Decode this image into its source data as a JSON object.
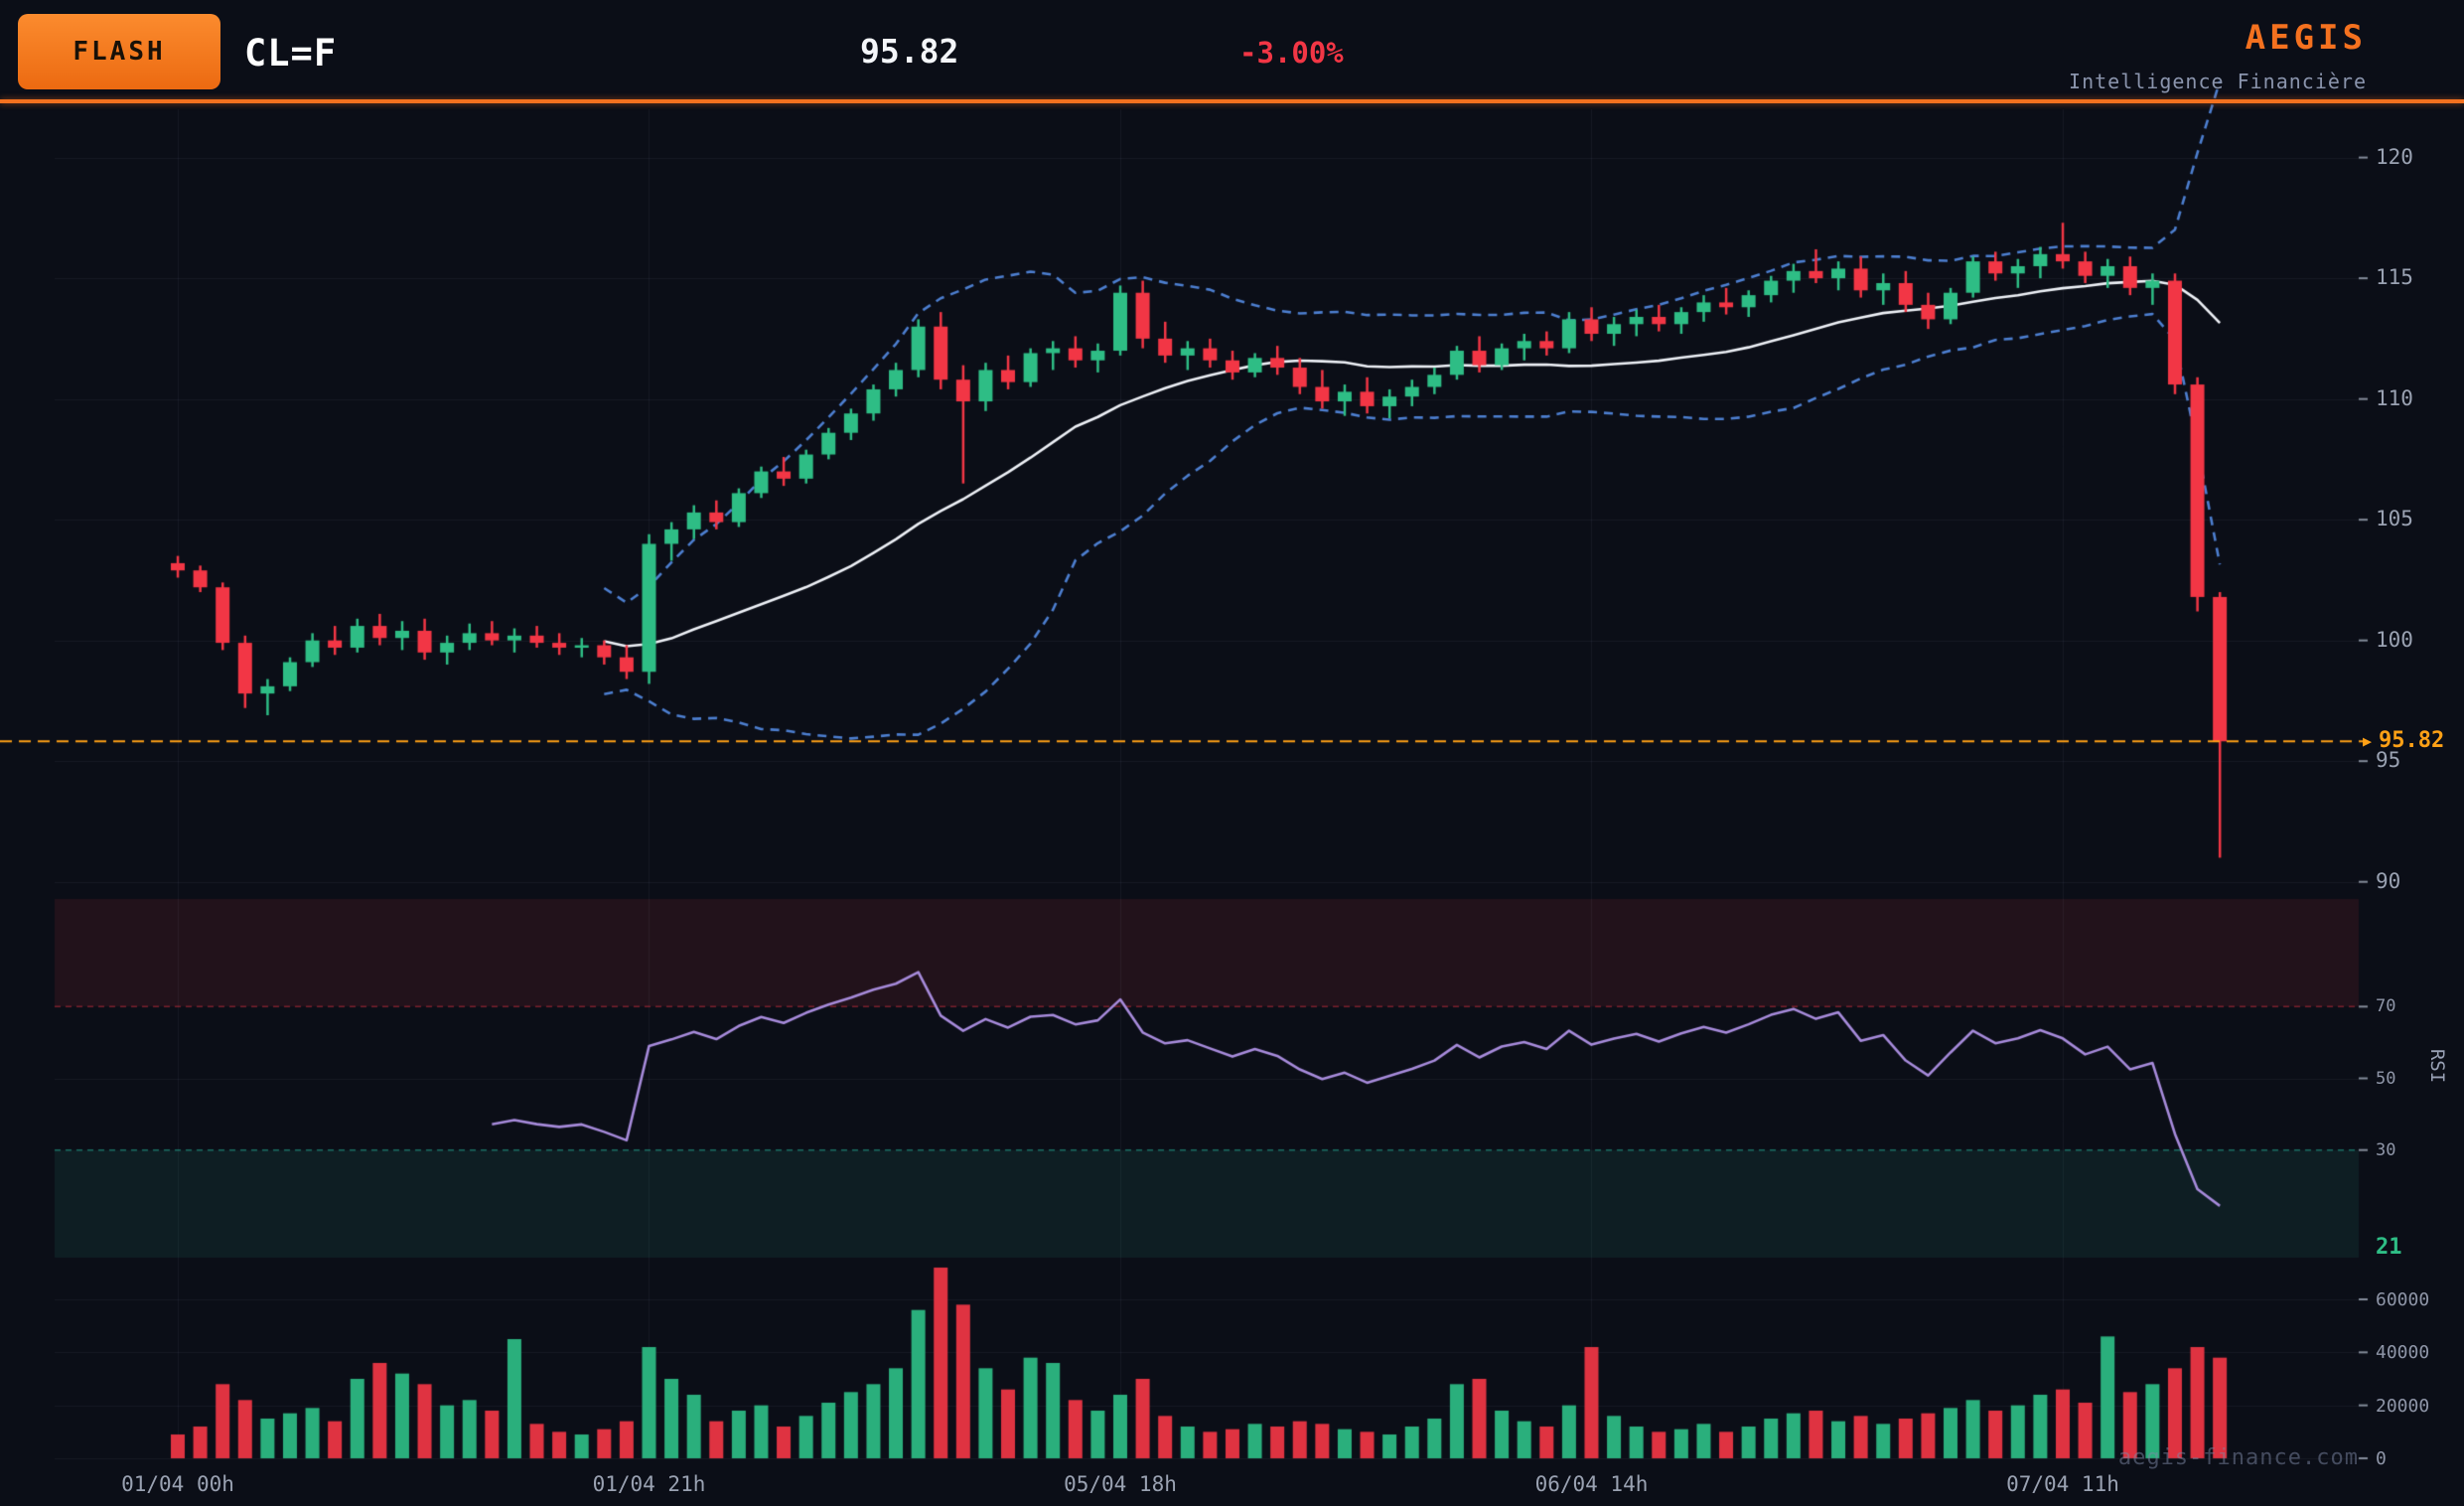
{
  "header": {
    "badge": "FLASH",
    "symbol": "CL=F",
    "price": "95.82",
    "change": "-3.00%",
    "brand": "AEGIS",
    "brand_subtitle": "Intelligence Financière"
  },
  "watermark": "aegis-finance.com",
  "axis": {
    "price_tag_arrow": "▶",
    "current_price_label": "95.82",
    "rsi_current_label": "21",
    "rsi_title": "RSI"
  },
  "colors": {
    "background": "#0b0e17",
    "bull": "#2ebd85",
    "bear": "#f23645",
    "sma": "#eef1f7",
    "bollinger": "#4d7fd0",
    "rsi": "#a78bdb",
    "accent": "#f4711f",
    "price_line": "#ffa116",
    "axis_text": "#9aa2b2",
    "grid": "rgba(150,160,190,0.08)",
    "tick_mark": "rgba(154,162,178,0.85)",
    "overbought_fill": "rgba(242,54,69,0.10)",
    "oversold_fill": "rgba(42,200,170,0.09)",
    "overbought_line": "rgba(242,54,69,0.45)",
    "oversold_line": "rgba(42,200,170,0.50)"
  },
  "chart_data": {
    "type": "candlestick",
    "symbol": "CL=F",
    "current_price": 95.82,
    "change_percent": -3.0,
    "rsi_current": 21,
    "price_axis_ticks": [
      90,
      95,
      100,
      105,
      110,
      115,
      120
    ],
    "rsi_axis_ticks": [
      30,
      50,
      70
    ],
    "volume_axis_ticks": [
      0,
      20000,
      40000,
      60000
    ],
    "price_range": [
      89.7,
      122.0
    ],
    "rsi_range": [
      0,
      100
    ],
    "volume_range": [
      0,
      72000
    ],
    "rsi_zones": {
      "overbought": 70,
      "oversold": 30
    },
    "indicators": {
      "sma_period": 20,
      "bollinger_period": 20,
      "bollinger_std": 2,
      "rsi_period": 14
    },
    "x_labels": [
      {
        "index": 0,
        "label": "01/04 00h"
      },
      {
        "index": 21,
        "label": "01/04 21h"
      },
      {
        "index": 42,
        "label": "05/04 18h"
      },
      {
        "index": 63,
        "label": "06/04 14h"
      },
      {
        "index": 84,
        "label": "07/04 11h"
      }
    ],
    "columns": [
      "open",
      "high",
      "low",
      "close",
      "volume"
    ],
    "candles": [
      [
        103.2,
        103.5,
        102.6,
        102.9,
        9000
      ],
      [
        102.9,
        103.1,
        102.0,
        102.2,
        12000
      ],
      [
        102.2,
        102.4,
        99.6,
        99.9,
        28000
      ],
      [
        99.9,
        100.2,
        97.2,
        97.8,
        22000
      ],
      [
        97.8,
        98.4,
        96.9,
        98.1,
        15000
      ],
      [
        98.1,
        99.3,
        97.9,
        99.1,
        17000
      ],
      [
        99.1,
        100.3,
        98.9,
        100.0,
        19000
      ],
      [
        100.0,
        100.6,
        99.4,
        99.7,
        14000
      ],
      [
        99.7,
        100.9,
        99.5,
        100.6,
        30000
      ],
      [
        100.6,
        101.1,
        99.8,
        100.1,
        36000
      ],
      [
        100.1,
        100.8,
        99.6,
        100.4,
        32000
      ],
      [
        100.4,
        100.9,
        99.2,
        99.5,
        28000
      ],
      [
        99.5,
        100.2,
        99.0,
        99.9,
        20000
      ],
      [
        99.9,
        100.7,
        99.6,
        100.3,
        22000
      ],
      [
        100.3,
        100.8,
        99.8,
        100.0,
        18000
      ],
      [
        100.0,
        100.5,
        99.5,
        100.2,
        45000
      ],
      [
        100.2,
        100.6,
        99.7,
        99.9,
        13000
      ],
      [
        99.9,
        100.3,
        99.4,
        99.7,
        10000
      ],
      [
        99.7,
        100.1,
        99.3,
        99.8,
        9000
      ],
      [
        99.8,
        100.0,
        99.0,
        99.3,
        11000
      ],
      [
        99.3,
        99.8,
        98.4,
        98.7,
        14000
      ],
      [
        98.7,
        104.4,
        98.2,
        104.0,
        42000
      ],
      [
        104.0,
        104.9,
        103.3,
        104.6,
        30000
      ],
      [
        104.6,
        105.6,
        104.2,
        105.3,
        24000
      ],
      [
        105.3,
        105.8,
        104.6,
        104.9,
        14000
      ],
      [
        104.9,
        106.3,
        104.7,
        106.1,
        18000
      ],
      [
        106.1,
        107.2,
        105.9,
        107.0,
        20000
      ],
      [
        107.0,
        107.6,
        106.4,
        106.7,
        12000
      ],
      [
        106.7,
        107.9,
        106.5,
        107.7,
        16000
      ],
      [
        107.7,
        108.8,
        107.5,
        108.6,
        21000
      ],
      [
        108.6,
        109.6,
        108.3,
        109.4,
        25000
      ],
      [
        109.4,
        110.6,
        109.1,
        110.4,
        28000
      ],
      [
        110.4,
        111.5,
        110.1,
        111.2,
        34000
      ],
      [
        111.2,
        113.3,
        110.9,
        113.0,
        56000
      ],
      [
        113.0,
        113.6,
        110.4,
        110.8,
        72000
      ],
      [
        110.8,
        111.4,
        106.5,
        109.9,
        58000
      ],
      [
        109.9,
        111.5,
        109.5,
        111.2,
        34000
      ],
      [
        111.2,
        111.8,
        110.4,
        110.7,
        26000
      ],
      [
        110.7,
        112.1,
        110.5,
        111.9,
        38000
      ],
      [
        111.9,
        112.4,
        111.2,
        112.1,
        36000
      ],
      [
        112.1,
        112.6,
        111.3,
        111.6,
        22000
      ],
      [
        111.6,
        112.3,
        111.1,
        112.0,
        18000
      ],
      [
        112.0,
        114.7,
        111.8,
        114.4,
        24000
      ],
      [
        114.4,
        114.9,
        112.1,
        112.5,
        30000
      ],
      [
        112.5,
        113.2,
        111.5,
        111.8,
        16000
      ],
      [
        111.8,
        112.4,
        111.2,
        112.1,
        12000
      ],
      [
        112.1,
        112.5,
        111.3,
        111.6,
        10000
      ],
      [
        111.6,
        112.0,
        110.8,
        111.1,
        11000
      ],
      [
        111.1,
        111.9,
        110.9,
        111.7,
        13000
      ],
      [
        111.7,
        112.2,
        111.0,
        111.3,
        12000
      ],
      [
        111.3,
        111.7,
        110.2,
        110.5,
        14000
      ],
      [
        110.5,
        111.2,
        109.6,
        109.9,
        13000
      ],
      [
        109.9,
        110.6,
        109.3,
        110.3,
        11000
      ],
      [
        110.3,
        110.9,
        109.4,
        109.7,
        10000
      ],
      [
        109.7,
        110.4,
        109.2,
        110.1,
        9000
      ],
      [
        110.1,
        110.8,
        109.7,
        110.5,
        12000
      ],
      [
        110.5,
        111.3,
        110.2,
        111.0,
        15000
      ],
      [
        111.0,
        112.2,
        110.8,
        112.0,
        28000
      ],
      [
        112.0,
        112.6,
        111.1,
        111.4,
        30000
      ],
      [
        111.4,
        112.3,
        111.2,
        112.1,
        18000
      ],
      [
        112.1,
        112.7,
        111.6,
        112.4,
        14000
      ],
      [
        112.4,
        112.8,
        111.8,
        112.1,
        12000
      ],
      [
        112.1,
        113.6,
        111.9,
        113.3,
        20000
      ],
      [
        113.3,
        113.8,
        112.4,
        112.7,
        42000
      ],
      [
        112.7,
        113.4,
        112.2,
        113.1,
        16000
      ],
      [
        113.1,
        113.7,
        112.6,
        113.4,
        12000
      ],
      [
        113.4,
        113.9,
        112.8,
        113.1,
        10000
      ],
      [
        113.1,
        113.8,
        112.7,
        113.6,
        11000
      ],
      [
        113.6,
        114.3,
        113.2,
        114.0,
        13000
      ],
      [
        114.0,
        114.6,
        113.5,
        113.8,
        10000
      ],
      [
        113.8,
        114.5,
        113.4,
        114.3,
        12000
      ],
      [
        114.3,
        115.1,
        114.0,
        114.9,
        15000
      ],
      [
        114.9,
        115.6,
        114.4,
        115.3,
        17000
      ],
      [
        115.3,
        116.2,
        114.8,
        115.0,
        18000
      ],
      [
        115.0,
        115.7,
        114.5,
        115.4,
        14000
      ],
      [
        115.4,
        115.9,
        114.2,
        114.5,
        16000
      ],
      [
        114.5,
        115.2,
        113.9,
        114.8,
        13000
      ],
      [
        114.8,
        115.3,
        113.6,
        113.9,
        15000
      ],
      [
        113.9,
        114.4,
        112.9,
        113.3,
        17000
      ],
      [
        113.3,
        114.6,
        113.1,
        114.4,
        19000
      ],
      [
        114.4,
        115.9,
        114.2,
        115.7,
        22000
      ],
      [
        115.7,
        116.1,
        114.9,
        115.2,
        18000
      ],
      [
        115.2,
        115.8,
        114.6,
        115.5,
        20000
      ],
      [
        115.5,
        116.3,
        115.0,
        116.0,
        24000
      ],
      [
        116.0,
        117.3,
        115.4,
        115.7,
        26000
      ],
      [
        115.7,
        116.1,
        114.8,
        115.1,
        21000
      ],
      [
        115.1,
        115.8,
        114.6,
        115.5,
        46000
      ],
      [
        115.5,
        115.9,
        114.3,
        114.6,
        25000
      ],
      [
        114.6,
        115.2,
        113.9,
        114.9,
        28000
      ],
      [
        114.9,
        115.2,
        110.2,
        110.6,
        34000
      ],
      [
        110.6,
        110.9,
        101.2,
        101.8,
        42000
      ],
      [
        101.8,
        102.0,
        91.0,
        95.82,
        38000
      ]
    ]
  }
}
